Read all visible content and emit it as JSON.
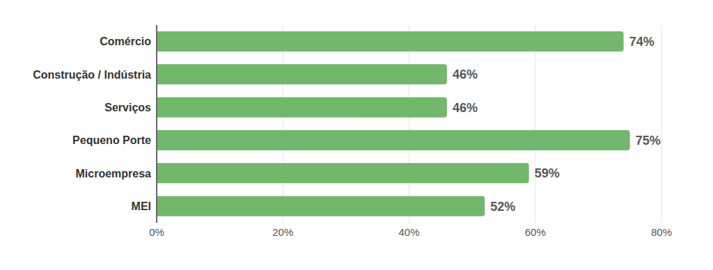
{
  "chart_data": {
    "type": "bar",
    "orientation": "horizontal",
    "categories": [
      "Comércio",
      "Construção / Indústria",
      "Serviços",
      "Pequeno Porte",
      "Microempresa",
      "MEI"
    ],
    "values": [
      74,
      46,
      46,
      75,
      59,
      52
    ],
    "value_labels": [
      "74%",
      "46%",
      "46%",
      "75%",
      "59%",
      "52%"
    ],
    "data_labels": true,
    "color": "#72b86b",
    "xlim": [
      0,
      80
    ],
    "xticks": [
      {
        "value": 0,
        "label": "0%"
      },
      {
        "value": 20,
        "label": "20%"
      },
      {
        "value": 40,
        "label": "40%"
      },
      {
        "value": 60,
        "label": "60%"
      },
      {
        "value": 80,
        "label": "80%"
      }
    ],
    "grid": true
  }
}
